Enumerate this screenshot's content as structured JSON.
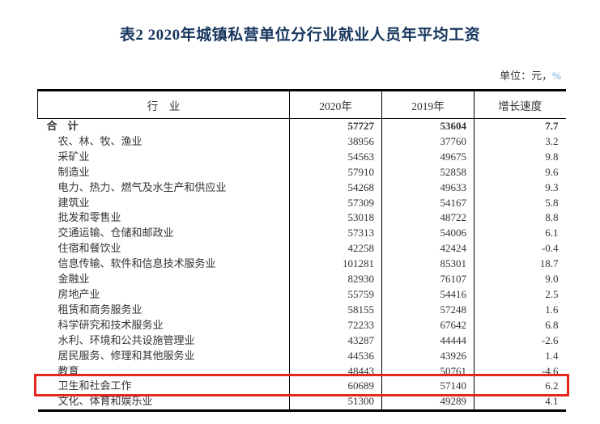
{
  "page": {
    "title": "表2  2020年城镇私营单位分行业就业人员年平均工资",
    "unit_prefix": "单位：元，",
    "unit_percent": "%"
  },
  "colors": {
    "title": "#17365d",
    "body_text": "#333333",
    "unit_percent": "#6fa8dc",
    "highlight_box": "#e8251f",
    "table_border": "#000000"
  },
  "table": {
    "headers": [
      "行　业",
      "2020年",
      "2019年",
      "增长速度"
    ],
    "rows": [
      {
        "name": "合　计",
        "y2020": "57727",
        "y2019": "53604",
        "growth": "7.7",
        "bold": true,
        "indent": false,
        "highlight": false
      },
      {
        "name": "农、林、牧、渔业",
        "y2020": "38956",
        "y2019": "37760",
        "growth": "3.2",
        "bold": false,
        "indent": true,
        "highlight": false
      },
      {
        "name": "采矿业",
        "y2020": "54563",
        "y2019": "49675",
        "growth": "9.8",
        "bold": false,
        "indent": true,
        "highlight": false
      },
      {
        "name": "制造业",
        "y2020": "57910",
        "y2019": "52858",
        "growth": "9.6",
        "bold": false,
        "indent": true,
        "highlight": false
      },
      {
        "name": "电力、热力、燃气及水生产和供应业",
        "y2020": "54268",
        "y2019": "49633",
        "growth": "9.3",
        "bold": false,
        "indent": true,
        "highlight": false
      },
      {
        "name": "建筑业",
        "y2020": "57309",
        "y2019": "54167",
        "growth": "5.8",
        "bold": false,
        "indent": true,
        "highlight": false
      },
      {
        "name": "批发和零售业",
        "y2020": "53018",
        "y2019": "48722",
        "growth": "8.8",
        "bold": false,
        "indent": true,
        "highlight": false
      },
      {
        "name": "交通运输、仓储和邮政业",
        "y2020": "57313",
        "y2019": "54006",
        "growth": "6.1",
        "bold": false,
        "indent": true,
        "highlight": false
      },
      {
        "name": "住宿和餐饮业",
        "y2020": "42258",
        "y2019": "42424",
        "growth": "-0.4",
        "bold": false,
        "indent": true,
        "highlight": false
      },
      {
        "name": "信息传输、软件和信息技术服务业",
        "y2020": "101281",
        "y2019": "85301",
        "growth": "18.7",
        "bold": false,
        "indent": true,
        "highlight": false
      },
      {
        "name": "金融业",
        "y2020": "82930",
        "y2019": "76107",
        "growth": "9.0",
        "bold": false,
        "indent": true,
        "highlight": false
      },
      {
        "name": "房地产业",
        "y2020": "55759",
        "y2019": "54416",
        "growth": "2.5",
        "bold": false,
        "indent": true,
        "highlight": false
      },
      {
        "name": "租赁和商务服务业",
        "y2020": "58155",
        "y2019": "57248",
        "growth": "1.6",
        "bold": false,
        "indent": true,
        "highlight": false
      },
      {
        "name": "科学研究和技术服务业",
        "y2020": "72233",
        "y2019": "67642",
        "growth": "6.8",
        "bold": false,
        "indent": true,
        "highlight": false
      },
      {
        "name": "水利、环境和公共设施管理业",
        "y2020": "43287",
        "y2019": "44444",
        "growth": "-2.6",
        "bold": false,
        "indent": true,
        "highlight": false
      },
      {
        "name": "居民服务、修理和其他服务业",
        "y2020": "44536",
        "y2019": "43926",
        "growth": "1.4",
        "bold": false,
        "indent": true,
        "highlight": false
      },
      {
        "name": "教育",
        "y2020": "48443",
        "y2019": "50761",
        "growth": "-4.6",
        "bold": false,
        "indent": true,
        "highlight": false
      },
      {
        "name": "卫生和社会工作",
        "y2020": "60689",
        "y2019": "57140",
        "growth": "6.2",
        "bold": false,
        "indent": true,
        "highlight": true
      },
      {
        "name": "文化、体育和娱乐业",
        "y2020": "51300",
        "y2019": "49289",
        "growth": "4.1",
        "bold": false,
        "indent": true,
        "highlight": false
      }
    ]
  }
}
